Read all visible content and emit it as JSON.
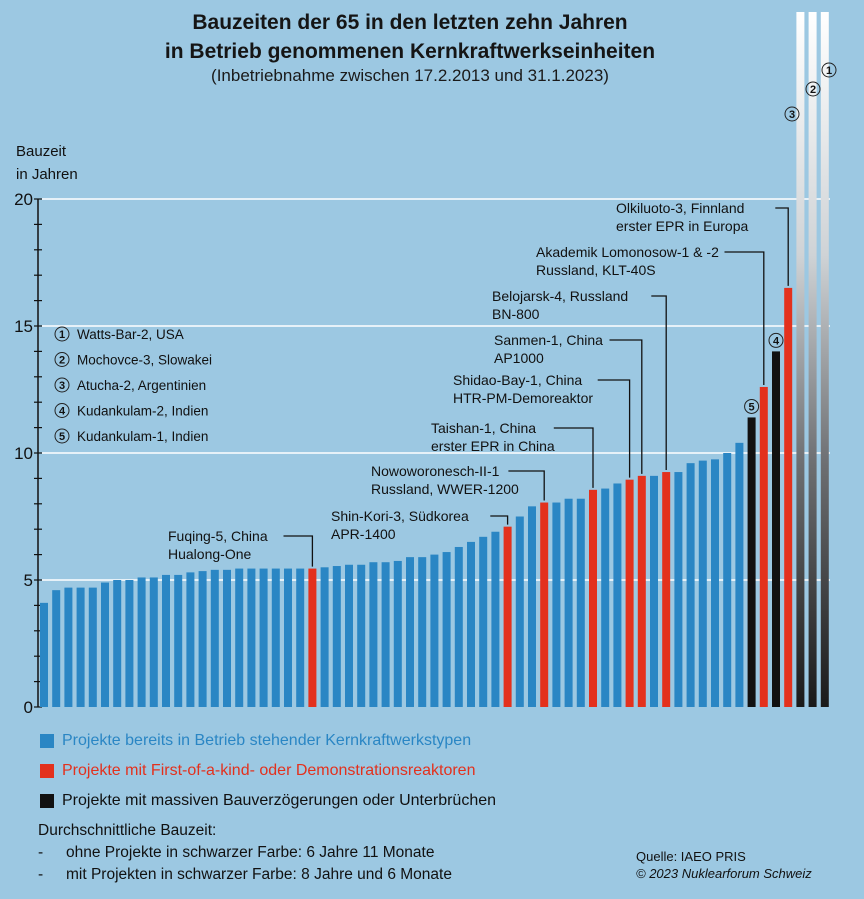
{
  "chart_data": {
    "type": "bar",
    "title": "Bauzeiten der 65 in den letzten zehn Jahren in Betrieb genommenen Kernkraftwerkseinheiten",
    "subtitle": "(Inbetriebnahme zwischen 17.2.2013 und 31.1.2023)",
    "ylabel": "Bauzeit in Jahren",
    "xlabel": "",
    "ylim": [
      0,
      20
    ],
    "yticks": [
      0,
      5,
      10,
      15,
      20
    ],
    "grid": true,
    "colors": {
      "blue": "#2a86c4",
      "red": "#e3311d",
      "black": "#111111"
    },
    "categories_type": [
      "blue",
      "red",
      "black"
    ],
    "values": [
      4.1,
      4.6,
      4.7,
      4.7,
      4.7,
      4.9,
      5.0,
      5.0,
      5.1,
      5.1,
      5.2,
      5.2,
      5.3,
      5.35,
      5.4,
      5.4,
      5.45,
      5.45,
      5.45,
      5.45,
      5.45,
      5.45,
      5.45,
      5.5,
      5.55,
      5.6,
      5.6,
      5.7,
      5.7,
      5.75,
      5.9,
      5.9,
      6.0,
      6.1,
      6.3,
      6.5,
      6.7,
      6.9,
      7.1,
      7.5,
      7.9,
      8.05,
      8.05,
      8.2,
      8.2,
      8.55,
      8.6,
      8.8,
      8.95,
      9.1,
      9.1,
      9.25,
      9.25,
      9.6,
      9.7,
      9.75,
      10.0,
      10.4,
      11.4,
      12.6,
      14.0,
      16.5,
      null,
      null,
      null
    ],
    "types": [
      "blue",
      "blue",
      "blue",
      "blue",
      "blue",
      "blue",
      "blue",
      "blue",
      "blue",
      "blue",
      "blue",
      "blue",
      "blue",
      "blue",
      "blue",
      "blue",
      "blue",
      "blue",
      "blue",
      "blue",
      "blue",
      "blue",
      "red",
      "blue",
      "blue",
      "blue",
      "blue",
      "blue",
      "blue",
      "blue",
      "blue",
      "blue",
      "blue",
      "blue",
      "blue",
      "blue",
      "blue",
      "blue",
      "red",
      "blue",
      "blue",
      "red",
      "blue",
      "blue",
      "blue",
      "red",
      "blue",
      "blue",
      "red",
      "red",
      "blue",
      "red",
      "blue",
      "blue",
      "blue",
      "blue",
      "blue",
      "blue",
      "black",
      "red",
      "black",
      "red",
      "black",
      "black",
      "black"
    ],
    "offscale_note": "Bars 63-65 (Atucha-2, Mochovce-3, Watts-Bar-2) exceed the axis range",
    "markers": [
      {
        "bar": 65,
        "label": "1"
      },
      {
        "bar": 64,
        "label": "2"
      },
      {
        "bar": 63,
        "label": "3"
      },
      {
        "bar": 61,
        "label": "4"
      },
      {
        "bar": 59,
        "label": "5"
      }
    ],
    "annotations": [
      {
        "bar": 23,
        "lines": [
          "Fuqing-5, China",
          "Hualong-One"
        ]
      },
      {
        "bar": 39,
        "lines": [
          "Shin-Kori-3, Südkorea",
          "APR-1400"
        ]
      },
      {
        "bar": 42,
        "lines": [
          "Nowoworonesch-II-1",
          "Russland, WWER-1200"
        ]
      },
      {
        "bar": 46,
        "lines": [
          "Taishan-1, China",
          "erster EPR in China"
        ]
      },
      {
        "bar": 49,
        "lines": [
          "Shidao-Bay-1, China",
          "HTR-PM-Demoreaktor"
        ]
      },
      {
        "bar": 50,
        "lines": [
          "Sanmen-1, China",
          "AP1000"
        ]
      },
      {
        "bar": 52,
        "lines": [
          "Belojarsk-4, Russland",
          "BN-800"
        ]
      },
      {
        "bar": 60,
        "lines": [
          "Akademik Lomonosow-1 & -2",
          "Russland, KLT-40S"
        ]
      },
      {
        "bar": 62,
        "lines": [
          "Olkiluoto-3, Finnland",
          "erster EPR in Europa"
        ]
      }
    ],
    "key": [
      {
        "num": "1",
        "text": "Watts-Bar-2, USA"
      },
      {
        "num": "2",
        "text": "Mochovce-3, Slowakei"
      },
      {
        "num": "3",
        "text": "Atucha-2, Argentinien"
      },
      {
        "num": "4",
        "text": "Kudankulam-2, Indien"
      },
      {
        "num": "5",
        "text": "Kudankulam-1, Indien"
      }
    ],
    "legend": [
      {
        "color": "#2a86c4",
        "text": "Projekte bereits in Betrieb stehender Kernkraftwerkstypen"
      },
      {
        "color": "#e3311d",
        "text": "Projekte mit First-of-a-kind- oder Demonstrationsreaktoren"
      },
      {
        "color": "#111111",
        "text": "Projekte mit massiven Bauverzögerungen oder Unterbrüchen"
      }
    ]
  },
  "header": {
    "title_line1": "Bauzeiten der 65 in den letzten zehn Jahren",
    "title_line2": "in Betrieb genommenen Kernkraftwerkseinheiten",
    "subtitle": "(Inbetriebnahme zwischen 17.2.2013 und 31.1.2023)"
  },
  "axis": {
    "ylabel_line1": "Bauzeit",
    "ylabel_line2": "in Jahren"
  },
  "average": {
    "heading": "Durchschnittliche Bauzeit:",
    "items": [
      {
        "dash": "-",
        "text": "ohne Projekte in schwarzer Farbe: 6 Jahre 11 Monate"
      },
      {
        "dash": "-",
        "text": "mit Projekten in schwarzer Farbe: 8 Jahre und 6 Monate"
      }
    ]
  },
  "source": {
    "line1": "Quelle: IAEO PRIS",
    "line2": "© 2023 Nuklearforum Schweiz"
  }
}
